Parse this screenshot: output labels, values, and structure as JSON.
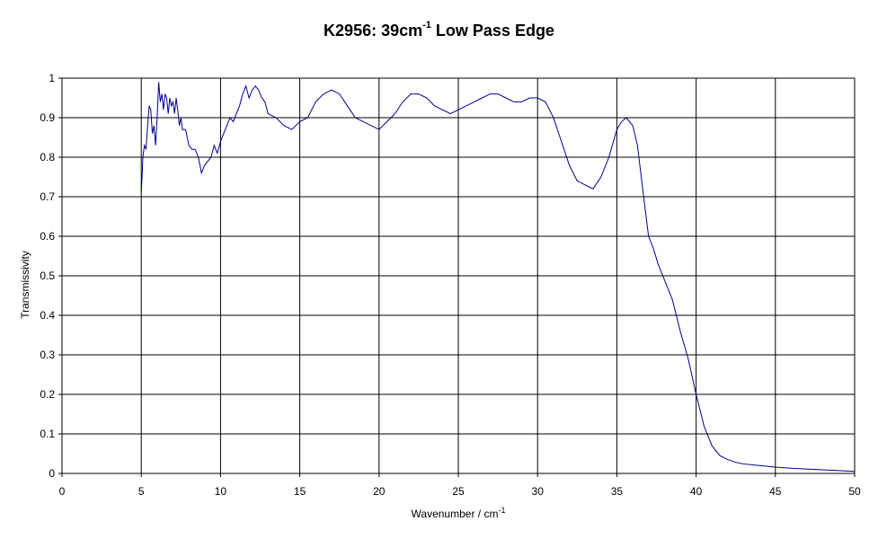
{
  "chart_data": {
    "type": "line",
    "title": {
      "prefix": "K2956: 39cm",
      "superscript": "-1",
      "suffix": " Low Pass Edge"
    },
    "xlabel": {
      "text": "Wavenumber / cm",
      "superscript": "-1"
    },
    "ylabel": "Transmissivity",
    "xlim": [
      0,
      50
    ],
    "ylim": [
      0,
      1
    ],
    "xticks": [
      0,
      5,
      10,
      15,
      20,
      25,
      30,
      35,
      40,
      45,
      50
    ],
    "yticks": [
      0,
      0.1,
      0.2,
      0.3,
      0.4,
      0.5,
      0.6,
      0.7,
      0.8,
      0.9,
      1
    ],
    "xtick_labels": [
      "0",
      "5",
      "10",
      "15",
      "20",
      "25",
      "30",
      "35",
      "40",
      "45",
      "50"
    ],
    "ytick_labels": [
      "0",
      "0.1",
      "0.2",
      "0.3",
      "0.4",
      "0.5",
      "0.6",
      "0.7",
      "0.8",
      "0.9",
      "1"
    ],
    "grid": true,
    "line_color": "#00008B",
    "series": [
      {
        "x": [
          5.0,
          5.05,
          5.1,
          5.2,
          5.3,
          5.4,
          5.5,
          5.6,
          5.7,
          5.8,
          5.9,
          6.0,
          6.1,
          6.2,
          6.3,
          6.4,
          6.5,
          6.6,
          6.7,
          6.8,
          6.9,
          7.0,
          7.1,
          7.2,
          7.3,
          7.4,
          7.5,
          7.6,
          7.8,
          8.0,
          8.2,
          8.4,
          8.6,
          8.8,
          9.0,
          9.2,
          9.4,
          9.6,
          9.8,
          10.0,
          10.2,
          10.4,
          10.6,
          10.8,
          11.0,
          11.2,
          11.4,
          11.6,
          11.8,
          12.0,
          12.2,
          12.4,
          12.6,
          12.8,
          13.0,
          13.5,
          14.0,
          14.5,
          15.0,
          15.5,
          16.0,
          16.5,
          17.0,
          17.5,
          18.0,
          18.5,
          19.0,
          19.5,
          20.0,
          20.5,
          21.0,
          21.5,
          22.0,
          22.5,
          23.0,
          23.5,
          24.0,
          24.5,
          25.0,
          25.5,
          26.0,
          26.5,
          27.0,
          27.5,
          28.0,
          28.5,
          29.0,
          29.5,
          30.0,
          30.5,
          31.0,
          31.5,
          32.0,
          32.5,
          33.0,
          33.5,
          34.0,
          34.5,
          35.0,
          35.3,
          35.6,
          36.0,
          36.3,
          36.6,
          37.0,
          37.3,
          37.6,
          38.0,
          38.5,
          39.0,
          39.5,
          40.0,
          40.5,
          41.0,
          41.5,
          42.0,
          42.5,
          43.0,
          44.0,
          45.0,
          46.0,
          47.0,
          48.0,
          49.0,
          50.0
        ],
        "y": [
          0.71,
          0.75,
          0.8,
          0.83,
          0.82,
          0.88,
          0.93,
          0.92,
          0.86,
          0.88,
          0.83,
          0.9,
          0.99,
          0.94,
          0.96,
          0.92,
          0.96,
          0.95,
          0.91,
          0.95,
          0.93,
          0.94,
          0.91,
          0.95,
          0.92,
          0.88,
          0.9,
          0.87,
          0.87,
          0.83,
          0.82,
          0.82,
          0.8,
          0.76,
          0.78,
          0.79,
          0.8,
          0.83,
          0.81,
          0.84,
          0.86,
          0.88,
          0.9,
          0.89,
          0.91,
          0.93,
          0.96,
          0.98,
          0.95,
          0.97,
          0.98,
          0.97,
          0.95,
          0.94,
          0.91,
          0.9,
          0.88,
          0.87,
          0.89,
          0.9,
          0.94,
          0.96,
          0.97,
          0.96,
          0.93,
          0.9,
          0.89,
          0.88,
          0.87,
          0.89,
          0.91,
          0.94,
          0.96,
          0.96,
          0.95,
          0.93,
          0.92,
          0.91,
          0.92,
          0.93,
          0.94,
          0.95,
          0.96,
          0.96,
          0.95,
          0.94,
          0.94,
          0.95,
          0.95,
          0.94,
          0.9,
          0.84,
          0.78,
          0.74,
          0.73,
          0.72,
          0.75,
          0.8,
          0.87,
          0.89,
          0.9,
          0.88,
          0.83,
          0.73,
          0.6,
          0.57,
          0.53,
          0.49,
          0.44,
          0.36,
          0.29,
          0.2,
          0.12,
          0.07,
          0.045,
          0.035,
          0.028,
          0.024,
          0.02,
          0.016,
          0.013,
          0.011,
          0.009,
          0.007,
          0.005
        ]
      }
    ]
  }
}
